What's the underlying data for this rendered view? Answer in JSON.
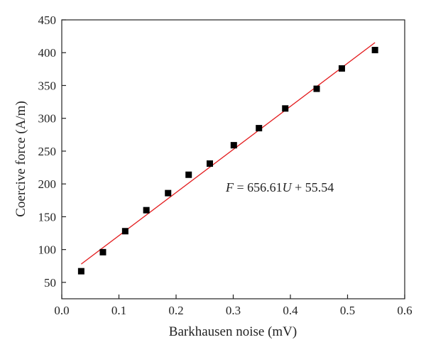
{
  "chart_data": {
    "type": "scatter",
    "title": "",
    "xlabel": "Barkhausen noise (mV)",
    "ylabel": "Coercive force (A/m)",
    "xlim": [
      0.0,
      0.6
    ],
    "ylim": [
      25,
      450
    ],
    "x_ticks": [
      "0.0",
      "0.1",
      "0.2",
      "0.3",
      "0.4",
      "0.5",
      "0.6"
    ],
    "y_ticks": [
      "50",
      "100",
      "150",
      "200",
      "250",
      "300",
      "350",
      "400",
      "450"
    ],
    "grid": false,
    "legend": "none",
    "series": [
      {
        "marker": "square",
        "color": "#000000",
        "points": [
          [
            0.034,
            67
          ],
          [
            0.072,
            96
          ],
          [
            0.111,
            128
          ],
          [
            0.148,
            160
          ],
          [
            0.186,
            186
          ],
          [
            0.222,
            214
          ],
          [
            0.259,
            231
          ],
          [
            0.301,
            259
          ],
          [
            0.345,
            285
          ],
          [
            0.391,
            315
          ],
          [
            0.446,
            345
          ],
          [
            0.49,
            376
          ],
          [
            0.548,
            404
          ]
        ]
      }
    ],
    "fit_line": {
      "color": "#e31a1c",
      "slope": 656.61,
      "intercept": 55.54,
      "x_range": [
        0.034,
        0.548
      ]
    },
    "annotation": {
      "var_f": "F",
      "eq_mid": " = 656.61",
      "var_u": "U",
      "eq_tail": " + 55.54"
    }
  }
}
